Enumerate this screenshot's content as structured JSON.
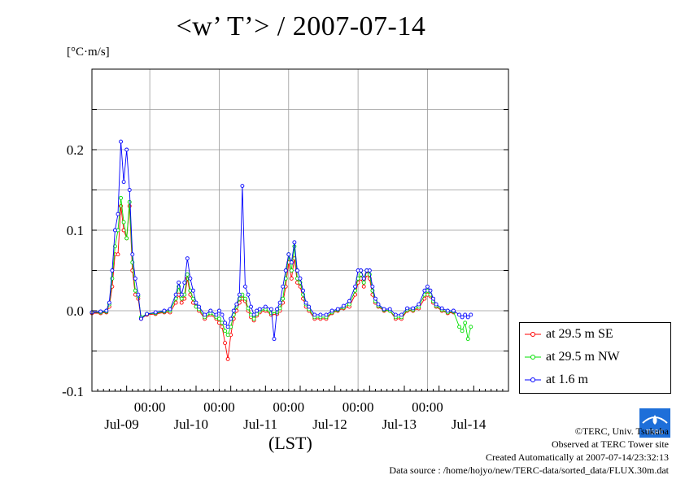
{
  "title": "<w’ T’> / 2007-07-14",
  "unit_label": "[°C·m/s]",
  "xlabel": "(LST)",
  "credits": {
    "copyright": "©TERC, Univ. Tsukuba",
    "observed": "Observed at TERC Tower site",
    "created": "Created Automatically at 2007-07-14/23:32:13",
    "source": "Data source : /home/hojyo/new/TERC-data/sorted_data/FLUX.30m.dat"
  },
  "logo_text": "TERC",
  "chart_data": {
    "type": "line",
    "ylim": [
      -0.1,
      0.3
    ],
    "xlim": [
      0,
      288
    ],
    "yticks": [
      -0.1,
      0.0,
      0.1,
      0.2
    ],
    "ytick_labels": [
      "-0.1",
      "0.0",
      "0.1",
      "0.2"
    ],
    "x_time_ticks": [
      40,
      88,
      136,
      184,
      232
    ],
    "x_time_labels": [
      "00:00",
      "00:00",
      "00:00",
      "00:00",
      "00:00"
    ],
    "x_date_ticks": [
      16,
      64,
      112,
      160,
      208,
      256
    ],
    "x_date_labels": [
      "Jul-09",
      "Jul-10",
      "Jul-11",
      "Jul-12",
      "Jul-13",
      "Jul-14"
    ],
    "grid": true,
    "legend_position": "right-bottom",
    "series": [
      {
        "name": "at 29.5 m SE",
        "color": "#ff0000",
        "points": [
          [
            0,
            -0.003
          ],
          [
            6,
            -0.003
          ],
          [
            10,
            -0.002
          ],
          [
            12,
            0.005
          ],
          [
            14,
            0.03
          ],
          [
            16,
            0.07
          ],
          [
            18,
            0.07
          ],
          [
            20,
            0.13
          ],
          [
            22,
            0.1
          ],
          [
            24,
            0.09
          ],
          [
            26,
            0.13
          ],
          [
            28,
            0.05
          ],
          [
            30,
            0.02
          ],
          [
            32,
            0.015
          ],
          [
            34,
            -0.01
          ],
          [
            38,
            -0.005
          ],
          [
            44,
            -0.004
          ],
          [
            50,
            -0.002
          ],
          [
            54,
            -0.002
          ],
          [
            58,
            0.01
          ],
          [
            60,
            0.02
          ],
          [
            62,
            0.01
          ],
          [
            64,
            0.015
          ],
          [
            66,
            0.04
          ],
          [
            68,
            0.02
          ],
          [
            70,
            0.01
          ],
          [
            72,
            0.005
          ],
          [
            74,
            0.0
          ],
          [
            78,
            -0.01
          ],
          [
            82,
            -0.005
          ],
          [
            86,
            -0.01
          ],
          [
            88,
            -0.015
          ],
          [
            90,
            -0.02
          ],
          [
            92,
            -0.04
          ],
          [
            94,
            -0.06
          ],
          [
            96,
            -0.03
          ],
          [
            98,
            -0.01
          ],
          [
            100,
            0.0
          ],
          [
            102,
            0.01
          ],
          [
            104,
            0.015
          ],
          [
            106,
            0.012
          ],
          [
            108,
            0.0
          ],
          [
            110,
            -0.008
          ],
          [
            112,
            -0.012
          ],
          [
            114,
            -0.006
          ],
          [
            116,
            -0.002
          ],
          [
            120,
            0.0
          ],
          [
            124,
            -0.005
          ],
          [
            128,
            -0.004
          ],
          [
            130,
            0.0
          ],
          [
            132,
            0.01
          ],
          [
            134,
            0.03
          ],
          [
            136,
            0.06
          ],
          [
            138,
            0.04
          ],
          [
            140,
            0.065
          ],
          [
            142,
            0.035
          ],
          [
            144,
            0.03
          ],
          [
            146,
            0.015
          ],
          [
            148,
            0.005
          ],
          [
            150,
            0.0
          ],
          [
            154,
            -0.01
          ],
          [
            158,
            -0.01
          ],
          [
            162,
            -0.01
          ],
          [
            166,
            -0.003
          ],
          [
            170,
            0.0
          ],
          [
            174,
            0.003
          ],
          [
            178,
            0.005
          ],
          [
            182,
            0.02
          ],
          [
            184,
            0.035
          ],
          [
            186,
            0.04
          ],
          [
            188,
            0.03
          ],
          [
            190,
            0.045
          ],
          [
            192,
            0.04
          ],
          [
            194,
            0.02
          ],
          [
            196,
            0.01
          ],
          [
            198,
            0.005
          ],
          [
            202,
            0.0
          ],
          [
            206,
            0.0
          ],
          [
            210,
            -0.01
          ],
          [
            214,
            -0.01
          ],
          [
            218,
            0.0
          ],
          [
            222,
            0.0
          ],
          [
            226,
            0.003
          ],
          [
            230,
            0.015
          ],
          [
            232,
            0.02
          ],
          [
            234,
            0.018
          ],
          [
            236,
            0.01
          ],
          [
            238,
            0.005
          ],
          [
            242,
            0.0
          ],
          [
            246,
            -0.003
          ],
          [
            250,
            -0.002
          ]
        ]
      },
      {
        "name": "at 29.5 m NW",
        "color": "#00e000",
        "points": [
          [
            0,
            -0.002
          ],
          [
            6,
            -0.002
          ],
          [
            10,
            -0.001
          ],
          [
            12,
            0.008
          ],
          [
            14,
            0.04
          ],
          [
            16,
            0.08
          ],
          [
            18,
            0.1
          ],
          [
            20,
            0.14
          ],
          [
            22,
            0.11
          ],
          [
            24,
            0.09
          ],
          [
            26,
            0.135
          ],
          [
            28,
            0.06
          ],
          [
            30,
            0.025
          ],
          [
            32,
            0.018
          ],
          [
            34,
            -0.008
          ],
          [
            38,
            -0.004
          ],
          [
            44,
            -0.003
          ],
          [
            50,
            -0.001
          ],
          [
            54,
            0.0
          ],
          [
            58,
            0.015
          ],
          [
            60,
            0.03
          ],
          [
            62,
            0.015
          ],
          [
            64,
            0.02
          ],
          [
            66,
            0.045
          ],
          [
            68,
            0.025
          ],
          [
            70,
            0.015
          ],
          [
            72,
            0.005
          ],
          [
            74,
            0.002
          ],
          [
            78,
            -0.008
          ],
          [
            82,
            -0.003
          ],
          [
            86,
            -0.008
          ],
          [
            88,
            -0.01
          ],
          [
            90,
            -0.015
          ],
          [
            92,
            -0.025
          ],
          [
            94,
            -0.03
          ],
          [
            96,
            -0.02
          ],
          [
            98,
            -0.005
          ],
          [
            100,
            0.005
          ],
          [
            102,
            0.015
          ],
          [
            104,
            0.02
          ],
          [
            106,
            0.015
          ],
          [
            108,
            0.003
          ],
          [
            110,
            -0.005
          ],
          [
            112,
            -0.01
          ],
          [
            114,
            -0.004
          ],
          [
            116,
            0.0
          ],
          [
            120,
            0.002
          ],
          [
            124,
            -0.003
          ],
          [
            128,
            -0.002
          ],
          [
            130,
            0.003
          ],
          [
            132,
            0.015
          ],
          [
            134,
            0.04
          ],
          [
            136,
            0.07
          ],
          [
            138,
            0.05
          ],
          [
            140,
            0.08
          ],
          [
            142,
            0.04
          ],
          [
            144,
            0.035
          ],
          [
            146,
            0.02
          ],
          [
            148,
            0.008
          ],
          [
            150,
            0.002
          ],
          [
            154,
            -0.008
          ],
          [
            158,
            -0.008
          ],
          [
            162,
            -0.008
          ],
          [
            166,
            -0.002
          ],
          [
            170,
            0.001
          ],
          [
            174,
            0.004
          ],
          [
            178,
            0.008
          ],
          [
            182,
            0.025
          ],
          [
            184,
            0.04
          ],
          [
            186,
            0.045
          ],
          [
            188,
            0.035
          ],
          [
            190,
            0.05
          ],
          [
            192,
            0.045
          ],
          [
            194,
            0.025
          ],
          [
            196,
            0.012
          ],
          [
            198,
            0.006
          ],
          [
            202,
            0.001
          ],
          [
            206,
            0.0
          ],
          [
            210,
            -0.008
          ],
          [
            214,
            -0.008
          ],
          [
            218,
            0.001
          ],
          [
            222,
            0.001
          ],
          [
            226,
            0.005
          ],
          [
            230,
            0.02
          ],
          [
            232,
            0.025
          ],
          [
            234,
            0.02
          ],
          [
            236,
            0.012
          ],
          [
            238,
            0.006
          ],
          [
            242,
            0.001
          ],
          [
            246,
            -0.002
          ],
          [
            250,
            -0.001
          ],
          [
            254,
            -0.02
          ],
          [
            256,
            -0.025
          ],
          [
            258,
            -0.015
          ],
          [
            260,
            -0.035
          ],
          [
            262,
            -0.02
          ]
        ]
      },
      {
        "name": "at 1.6 m",
        "color": "#0000ff",
        "points": [
          [
            0,
            -0.002
          ],
          [
            6,
            -0.001
          ],
          [
            10,
            0.0
          ],
          [
            12,
            0.01
          ],
          [
            14,
            0.05
          ],
          [
            16,
            0.1
          ],
          [
            18,
            0.12
          ],
          [
            20,
            0.21
          ],
          [
            22,
            0.16
          ],
          [
            24,
            0.2
          ],
          [
            26,
            0.15
          ],
          [
            28,
            0.07
          ],
          [
            30,
            0.04
          ],
          [
            32,
            0.02
          ],
          [
            34,
            -0.01
          ],
          [
            38,
            -0.004
          ],
          [
            44,
            -0.002
          ],
          [
            50,
            0.0
          ],
          [
            54,
            0.002
          ],
          [
            58,
            0.02
          ],
          [
            60,
            0.035
          ],
          [
            62,
            0.02
          ],
          [
            64,
            0.035
          ],
          [
            66,
            0.065
          ],
          [
            68,
            0.04
          ],
          [
            70,
            0.025
          ],
          [
            72,
            0.01
          ],
          [
            74,
            0.005
          ],
          [
            78,
            -0.005
          ],
          [
            82,
            0.0
          ],
          [
            86,
            -0.005
          ],
          [
            88,
            0.0
          ],
          [
            90,
            -0.005
          ],
          [
            92,
            -0.015
          ],
          [
            94,
            -0.02
          ],
          [
            96,
            -0.01
          ],
          [
            98,
            0.0
          ],
          [
            100,
            0.008
          ],
          [
            102,
            0.02
          ],
          [
            104,
            0.155
          ],
          [
            106,
            0.03
          ],
          [
            108,
            0.02
          ],
          [
            110,
            0.005
          ],
          [
            112,
            -0.005
          ],
          [
            114,
            0.0
          ],
          [
            116,
            0.002
          ],
          [
            120,
            0.005
          ],
          [
            124,
            0.002
          ],
          [
            126,
            -0.035
          ],
          [
            128,
            0.002
          ],
          [
            130,
            0.01
          ],
          [
            132,
            0.03
          ],
          [
            134,
            0.05
          ],
          [
            136,
            0.07
          ],
          [
            138,
            0.06
          ],
          [
            140,
            0.085
          ],
          [
            142,
            0.05
          ],
          [
            144,
            0.04
          ],
          [
            146,
            0.025
          ],
          [
            148,
            0.01
          ],
          [
            150,
            0.005
          ],
          [
            154,
            -0.005
          ],
          [
            158,
            -0.005
          ],
          [
            162,
            -0.005
          ],
          [
            166,
            0.0
          ],
          [
            170,
            0.002
          ],
          [
            174,
            0.006
          ],
          [
            178,
            0.012
          ],
          [
            182,
            0.03
          ],
          [
            184,
            0.05
          ],
          [
            186,
            0.05
          ],
          [
            188,
            0.04
          ],
          [
            190,
            0.05
          ],
          [
            192,
            0.05
          ],
          [
            194,
            0.03
          ],
          [
            196,
            0.015
          ],
          [
            198,
            0.008
          ],
          [
            202,
            0.002
          ],
          [
            206,
            0.002
          ],
          [
            210,
            -0.005
          ],
          [
            214,
            -0.005
          ],
          [
            218,
            0.003
          ],
          [
            222,
            0.003
          ],
          [
            226,
            0.008
          ],
          [
            230,
            0.025
          ],
          [
            232,
            0.03
          ],
          [
            234,
            0.025
          ],
          [
            236,
            0.015
          ],
          [
            238,
            0.008
          ],
          [
            242,
            0.003
          ],
          [
            246,
            0.0
          ],
          [
            250,
            0.0
          ],
          [
            254,
            -0.005
          ],
          [
            256,
            -0.008
          ],
          [
            258,
            -0.005
          ],
          [
            260,
            -0.008
          ],
          [
            262,
            -0.005
          ]
        ]
      }
    ]
  }
}
